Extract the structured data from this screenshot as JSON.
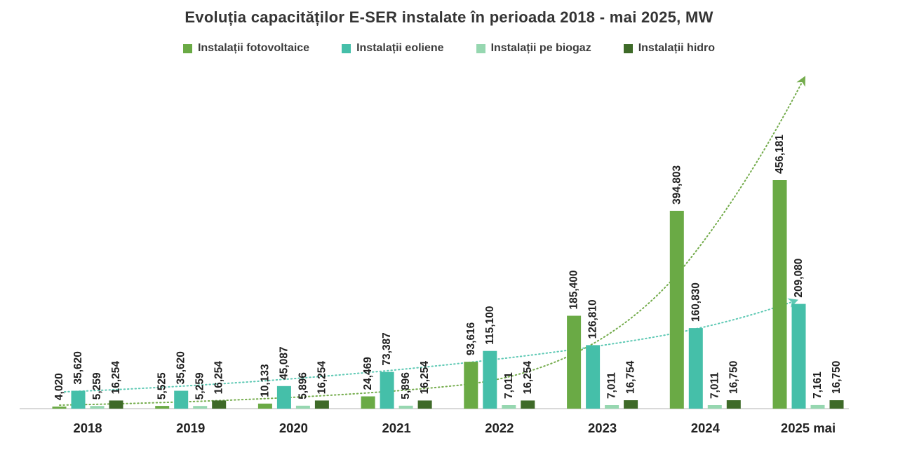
{
  "chart_data": {
    "type": "bar",
    "title": "Evoluția capacităților E-SER instalate în perioada 2018 - mai 2025, MW",
    "unit": "MW",
    "legend_position": "top",
    "grid": false,
    "value_label_style": "rotated-vertical-bold",
    "ylim": [
      0,
      460000
    ],
    "categories": [
      "2018",
      "2019",
      "2020",
      "2021",
      "2022",
      "2023",
      "2024",
      "2025 mai"
    ],
    "series": [
      {
        "key": "fotovoltaice",
        "name": "Instalații fotovoltaice",
        "color": "#6aaa45",
        "values": [
          4020,
          5525,
          10133,
          24469,
          93616,
          185400,
          394803,
          456181
        ],
        "labels": [
          "4,020",
          "5,525",
          "10,133",
          "24,469",
          "93,616",
          "185,400",
          "394,803",
          "456,181"
        ]
      },
      {
        "key": "eoliene",
        "name": "Instalații eoliene",
        "color": "#45bfa9",
        "values": [
          35620,
          35620,
          45087,
          73387,
          115100,
          126810,
          160830,
          209080
        ],
        "labels": [
          "35,620",
          "35,620",
          "45,087",
          "73,387",
          "115,100",
          "126,810",
          "160,830",
          "209,080"
        ]
      },
      {
        "key": "biogaz",
        "name": "Instalații pe biogaz",
        "color": "#96d7b0",
        "values": [
          5259,
          5259,
          5896,
          5896,
          7011,
          7011,
          7011,
          7161
        ],
        "labels": [
          "5,259",
          "5,259",
          "5,896",
          "5,896",
          "7,011",
          "7,011",
          "7,011",
          "7,161"
        ]
      },
      {
        "key": "hidro",
        "name": "Instalații hidro",
        "color": "#3e6a28",
        "values": [
          16254,
          16254,
          16254,
          16254,
          16254,
          16754,
          16750,
          16750
        ],
        "labels": [
          "16,254",
          "16,254",
          "16,254",
          "16,254",
          "16,254",
          "16,754",
          "16,750",
          "16,750"
        ]
      }
    ],
    "trendlines": [
      {
        "for": "Instalații fotovoltaice",
        "key": "fotovoltaice",
        "style": "dotted-arrow",
        "color": "#74ac4c"
      },
      {
        "for": "Instalații eoliene",
        "key": "eoliene",
        "style": "dotted-arrow",
        "color": "#5ec9b4"
      }
    ],
    "axis_color": "#d9d9d9",
    "text_color": "#1f1f1f"
  }
}
